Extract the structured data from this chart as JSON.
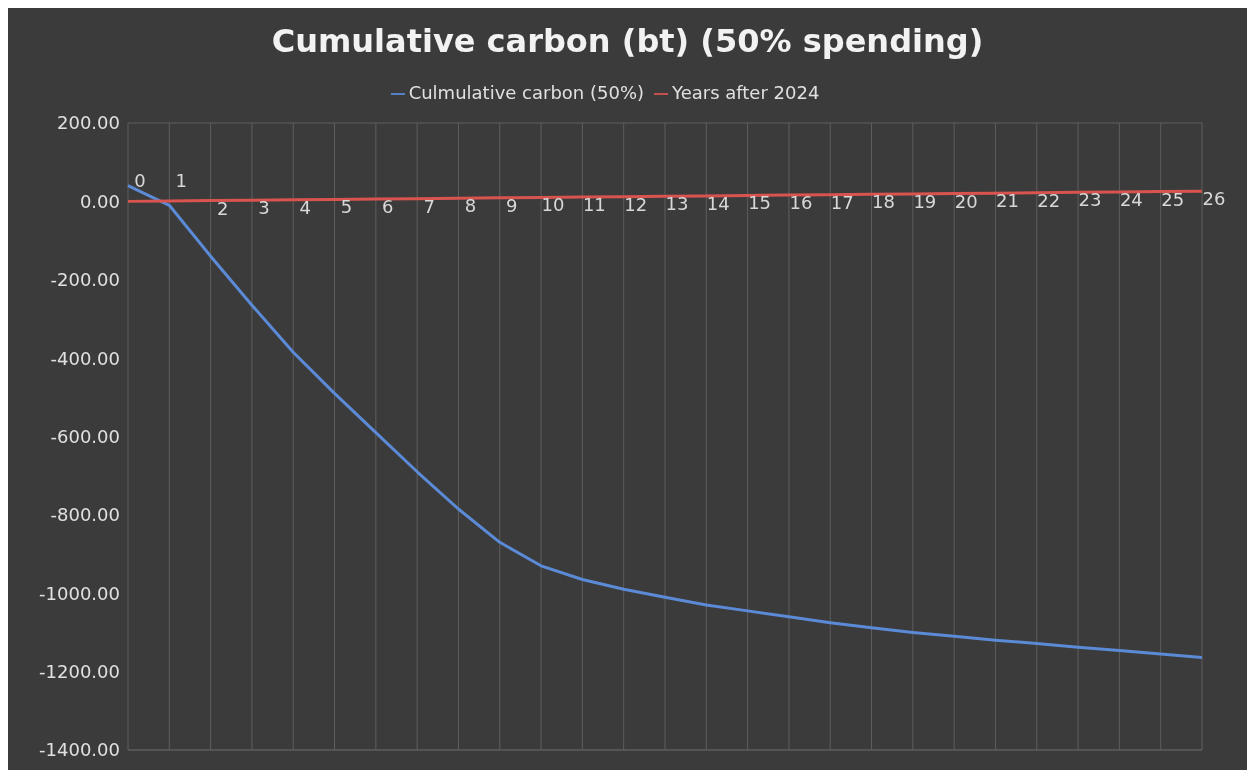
{
  "chart_data": {
    "type": "line",
    "title": "Cumulative carbon (bt) (50% spending)",
    "categories": [
      null,
      null,
      null,
      null,
      null,
      null,
      null,
      null,
      null,
      null,
      null,
      null,
      null,
      null,
      null,
      null,
      null,
      null,
      null,
      null,
      null,
      null,
      null,
      null,
      null,
      null,
      null
    ],
    "series": [
      {
        "name": "Culmulative carbon (50%)",
        "color": "#5b8ad6",
        "values": [
          40,
          -10,
          -140,
          -265,
          -385,
          -490,
          -590,
          -690,
          -785,
          -870,
          -930,
          -965,
          -990,
          -1010,
          -1030,
          -1045,
          -1060,
          -1075,
          -1088,
          -1100,
          -1110,
          -1120,
          -1128,
          -1138,
          -1146,
          -1155,
          -1164
        ]
      },
      {
        "name": "Years after 2024",
        "color": "#d9534f",
        "values": [
          0,
          1,
          2,
          3,
          4,
          5,
          6,
          7,
          8,
          9,
          10,
          11,
          12,
          13,
          14,
          15,
          16,
          17,
          18,
          19,
          20,
          21,
          22,
          23,
          24,
          25,
          26
        ],
        "value_labels": [
          "0",
          "1",
          "2",
          "3",
          "4",
          "5",
          "6",
          "7",
          "8",
          "9",
          "10",
          "11",
          "12",
          "13",
          "14",
          "15",
          "16",
          "17",
          "18",
          "19",
          "20",
          "21",
          "22",
          "23",
          "24",
          "25",
          "26"
        ]
      }
    ],
    "ylim": [
      -1400,
      200
    ],
    "yticks": [
      {
        "value": 200,
        "label": "200.00"
      },
      {
        "value": 0,
        "label": "0.00"
      },
      {
        "value": -200,
        "label": "-200.00"
      },
      {
        "value": -400,
        "label": "-400.00"
      },
      {
        "value": -600,
        "label": "-600.00"
      },
      {
        "value": -800,
        "label": "-800.00"
      },
      {
        "value": -1000,
        "label": "-1000.00"
      },
      {
        "value": -1200,
        "label": "-1200.00"
      },
      {
        "value": -1400,
        "label": "-1400.00"
      }
    ],
    "grid": true,
    "legend": "top",
    "marker": "none",
    "line_style": "solid"
  }
}
